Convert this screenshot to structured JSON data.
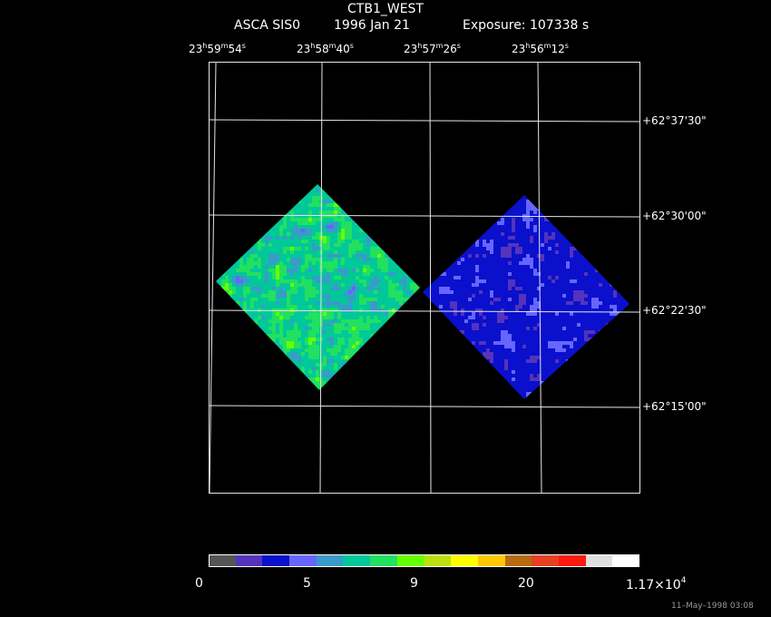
{
  "header": {
    "object": "CTB1_WEST",
    "instrument": "ASCA SIS0",
    "date": "1996 Jan 21",
    "exposure": "Exposure: 107338 s"
  },
  "ra_labels": [
    {
      "h": "23",
      "m": "59",
      "s": "54"
    },
    {
      "h": "23",
      "m": "58",
      "s": "40"
    },
    {
      "h": "23",
      "m": "57",
      "s": "26"
    },
    {
      "h": "23",
      "m": "56",
      "s": "12"
    }
  ],
  "dec_labels": [
    "+62°37'30\"",
    "+62°30'00\"",
    "+62°22'30\"",
    "+62°15'00\""
  ],
  "colorbar": {
    "colors": [
      "#555555",
      "#5533bb",
      "#0a10cc",
      "#6666ff",
      "#3a9ac8",
      "#00c89a",
      "#22e060",
      "#66ff00",
      "#bbe010",
      "#ffff00",
      "#ffc800",
      "#b86a10",
      "#e84020",
      "#ff1a10",
      "#e0e0e0",
      "#ffffff"
    ],
    "tick_labels": [
      "0",
      "5",
      "9",
      "20"
    ],
    "max_label_mantissa": "1.17×10",
    "max_label_exponent": "4"
  },
  "timestamp": "11–May–1998 03:08"
}
